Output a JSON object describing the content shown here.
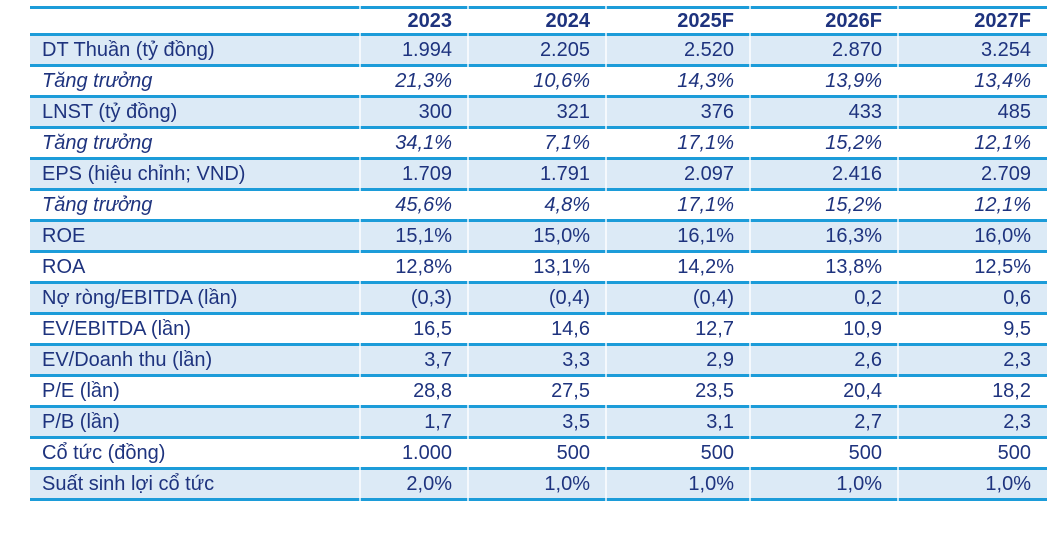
{
  "colors": {
    "rule_blue": "#1c9cd9",
    "row_fill_blue": "#dceaf6",
    "text_navy": "#1e337e"
  },
  "table": {
    "columns": [
      "",
      "2023",
      "2024",
      "2025F",
      "2026F",
      "2027F"
    ],
    "rows": [
      {
        "label": "DT Thuần (tỷ đồng)",
        "growth": false,
        "values": [
          "1.994",
          "2.205",
          "2.520",
          "2.870",
          "3.254"
        ]
      },
      {
        "label": "Tăng trưởng",
        "growth": true,
        "values": [
          "21,3%",
          "10,6%",
          "14,3%",
          "13,9%",
          "13,4%"
        ]
      },
      {
        "label": "LNST (tỷ đồng)",
        "growth": false,
        "values": [
          "300",
          "321",
          "376",
          "433",
          "485"
        ]
      },
      {
        "label": "Tăng trưởng",
        "growth": true,
        "values": [
          "34,1%",
          "7,1%",
          "17,1%",
          "15,2%",
          "12,1%"
        ]
      },
      {
        "label": "EPS (hiệu chỉnh; VND)",
        "growth": false,
        "values": [
          "1.709",
          "1.791",
          "2.097",
          "2.416",
          "2.709"
        ]
      },
      {
        "label": "Tăng trưởng",
        "growth": true,
        "values": [
          "45,6%",
          "4,8%",
          "17,1%",
          "15,2%",
          "12,1%"
        ]
      },
      {
        "label": "ROE",
        "growth": false,
        "values": [
          "15,1%",
          "15,0%",
          "16,1%",
          "16,3%",
          "16,0%"
        ]
      },
      {
        "label": "ROA",
        "growth": false,
        "values": [
          "12,8%",
          "13,1%",
          "14,2%",
          "13,8%",
          "12,5%"
        ]
      },
      {
        "label": "Nợ ròng/EBITDA (lần)",
        "growth": false,
        "values": [
          "(0,3)",
          "(0,4)",
          "(0,4)",
          "0,2",
          "0,6"
        ]
      },
      {
        "label": "EV/EBITDA (lần)",
        "growth": false,
        "values": [
          "16,5",
          "14,6",
          "12,7",
          "10,9",
          "9,5"
        ]
      },
      {
        "label": "EV/Doanh thu (lần)",
        "growth": false,
        "values": [
          "3,7",
          "3,3",
          "2,9",
          "2,6",
          "2,3"
        ]
      },
      {
        "label": "P/E (lần)",
        "growth": false,
        "values": [
          "28,8",
          "27,5",
          "23,5",
          "20,4",
          "18,2"
        ]
      },
      {
        "label": "P/B (lần)",
        "growth": false,
        "values": [
          "1,7",
          "3,5",
          "3,1",
          "2,7",
          "2,3"
        ]
      },
      {
        "label": "Cổ tức (đồng)",
        "growth": false,
        "values": [
          "1.000",
          "500",
          "500",
          "500",
          "500"
        ]
      },
      {
        "label": "Suất sinh lợi cổ tức",
        "growth": false,
        "values": [
          "2,0%",
          "1,0%",
          "1,0%",
          "1,0%",
          "1,0%"
        ]
      }
    ]
  }
}
